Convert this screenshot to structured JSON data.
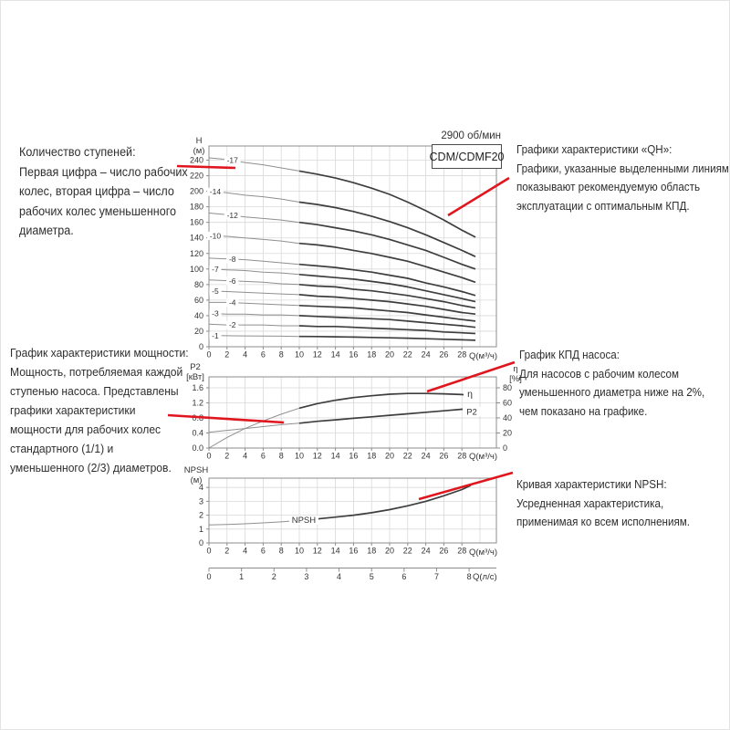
{
  "colors": {
    "accent": "#e0161f",
    "curve": "#3e3e3e",
    "curve_thin": "#8f8f8f",
    "grid": "#d9d9d9",
    "border": "#8c8c8c",
    "text": "#333333"
  },
  "annotations": [
    {
      "id": "stages",
      "text": "Количество ступеней:\nПервая цифра – число рабочих\nколес, вторая цифра – число\nрабочих колес уменьшенного\nдиаметра."
    },
    {
      "id": "qh",
      "text": "Графики характеристики «QH»:\nГрафики, указанные выделенными линиями,\nпоказывают рекомендуемую область\nэксплуатации с оптимальным КПД."
    },
    {
      "id": "power",
      "text": "График характеристики мощности:\nМощность, потребляемая каждой\nступенью насоса. Представлены\nграфики характеристики\nмощности для рабочих колес\nстандартного (1/1) и\nуменьшенного (2/3) диаметров."
    },
    {
      "id": "efficiency",
      "text": "График КПД насоса:\nДля насосов с рабочим колесом\nуменьшенного диаметра ниже на 2%,\nчем показано на графике."
    },
    {
      "id": "npsh",
      "text": "Кривая характеристики NPSH:\nУсредненная характеристика,\nприменимая ко всем исполнениям."
    }
  ],
  "lps_axis": {
    "label": "Q(л/с)",
    "ticks": [
      0,
      1,
      2,
      3,
      4,
      5,
      6,
      7,
      8
    ],
    "m3h_per_lps": 3.6
  },
  "chart_data": [
    {
      "type": "line",
      "id": "qh",
      "title": "CDM/CDMF20",
      "speed": "2900 об/мин",
      "ylabel": "H",
      "ylabel_unit": "(м)",
      "xlabel": "Q(м³/ч)",
      "xlim": [
        0,
        31.8
      ],
      "ylim": [
        0,
        258
      ],
      "grid": true,
      "x_ticks": [
        0,
        2,
        4,
        6,
        8,
        10,
        12,
        14,
        16,
        18,
        20,
        22,
        24,
        26,
        28
      ],
      "y_ticks": [
        0,
        20,
        40,
        60,
        80,
        100,
        120,
        140,
        160,
        180,
        200,
        220,
        240
      ],
      "emphasis_from_q": 10,
      "x": [
        0,
        2,
        4,
        6,
        8,
        10,
        12,
        14,
        16,
        18,
        20,
        22,
        24,
        26,
        28,
        29.5
      ],
      "series": [
        {
          "name": "-17",
          "label_q": 2.6,
          "values": [
            243,
            241,
            237,
            234,
            230,
            226,
            222,
            217,
            211,
            204,
            196,
            186,
            175,
            163,
            150,
            141
          ]
        },
        {
          "name": "-14",
          "label_q": 0.7,
          "values": [
            200,
            198,
            195,
            193,
            190,
            186,
            183,
            179,
            174,
            168,
            161,
            153,
            144,
            134,
            124,
            116
          ]
        },
        {
          "name": "-12",
          "label_q": 2.6,
          "values": [
            172,
            170,
            167,
            165,
            163,
            160,
            157,
            153,
            149,
            144,
            138,
            131,
            124,
            115,
            106,
            100
          ]
        },
        {
          "name": "-10",
          "label_q": 0.7,
          "values": [
            143,
            142,
            140,
            138,
            136,
            133,
            131,
            128,
            124,
            120,
            115,
            110,
            103,
            96,
            89,
            83
          ]
        },
        {
          "name": "-8",
          "label_q": 2.6,
          "values": [
            114,
            113,
            112,
            110,
            108,
            106,
            104,
            102,
            99,
            96,
            92,
            88,
            82,
            77,
            71,
            66
          ]
        },
        {
          "name": "-7",
          "label_q": 0.7,
          "values": [
            100,
            99,
            98,
            96,
            95,
            93,
            91,
            89,
            87,
            84,
            81,
            77,
            72,
            67,
            62,
            58
          ]
        },
        {
          "name": "-6",
          "label_q": 2.6,
          "values": [
            86,
            85,
            84,
            83,
            81,
            80,
            78,
            77,
            74,
            72,
            69,
            66,
            62,
            58,
            53,
            50
          ]
        },
        {
          "name": "-5",
          "label_q": 0.7,
          "values": [
            72,
            71,
            70,
            69,
            68,
            67,
            65,
            64,
            62,
            60,
            58,
            55,
            52,
            48,
            44,
            42
          ]
        },
        {
          "name": "-4",
          "label_q": 2.6,
          "values": [
            57,
            57,
            56,
            55,
            54,
            53,
            52,
            51,
            50,
            48,
            46,
            44,
            41,
            38,
            35,
            33
          ]
        },
        {
          "name": "-3",
          "label_q": 0.7,
          "values": [
            43,
            42,
            42,
            41,
            41,
            40,
            39,
            38,
            37,
            36,
            35,
            33,
            31,
            29,
            27,
            25
          ]
        },
        {
          "name": "-2",
          "label_q": 2.6,
          "values": [
            29,
            28,
            28,
            28,
            27,
            27,
            26,
            26,
            25,
            24,
            23,
            22,
            21,
            19,
            18,
            17
          ]
        },
        {
          "name": "-1",
          "label_q": 0.7,
          "values": [
            14.3,
            14.2,
            14,
            13.8,
            13.6,
            13.3,
            13.1,
            12.8,
            12.4,
            12,
            11.5,
            11,
            10.3,
            9.6,
            8.9,
            8.3
          ]
        }
      ]
    },
    {
      "type": "line",
      "id": "p2-eta",
      "ylabel_left": "P2",
      "ylabel_left_unit": "[кВт]",
      "ylabel_right": "η",
      "ylabel_right_unit": "[%]",
      "xlabel": "Q(м³/ч)",
      "x_ticks": [
        0,
        2,
        4,
        6,
        8,
        10,
        12,
        14,
        16,
        18,
        20,
        22,
        24,
        26,
        28
      ],
      "y_ticks_left": [
        "0.0",
        "0.4",
        "0.8",
        "1.2",
        "1.6"
      ],
      "y_ticks_right": [
        0,
        20,
        40,
        60,
        80
      ],
      "emphasis_from_q": 10,
      "x": [
        0,
        2,
        4,
        6,
        8,
        10,
        12,
        14,
        16,
        18,
        20,
        22,
        24,
        26,
        28,
        29
      ],
      "series": [
        {
          "name": "η",
          "axis": "right",
          "values": [
            0,
            14,
            26,
            36,
            45,
            53,
            59,
            63.5,
            67,
            69.5,
            71.5,
            72.5,
            72.5,
            72,
            71,
            70
          ]
        },
        {
          "name": "P2",
          "axis": "left",
          "values": [
            0.42,
            0.47,
            0.52,
            0.57,
            0.62,
            0.66,
            0.71,
            0.75,
            0.79,
            0.83,
            0.87,
            0.91,
            0.95,
            0.99,
            1.03,
            1.05
          ]
        }
      ]
    },
    {
      "type": "line",
      "id": "npsh",
      "ylabel": "NPSH",
      "ylabel_unit": "(м)",
      "xlabel": "Q(м³/ч)",
      "x_ticks": [
        0,
        2,
        4,
        6,
        8,
        10,
        12,
        14,
        16,
        18,
        20,
        22,
        24,
        26,
        28
      ],
      "y_ticks": [
        0,
        1,
        2,
        3,
        4
      ],
      "emphasis_from_q": 12,
      "x": [
        0,
        2,
        4,
        6,
        8,
        10,
        12,
        14,
        16,
        18,
        20,
        22,
        24,
        26,
        28,
        29
      ],
      "series": [
        {
          "name": "NPSH",
          "label_q": 10.5,
          "values": [
            1.3,
            1.33,
            1.38,
            1.45,
            1.52,
            1.62,
            1.73,
            1.86,
            2.0,
            2.18,
            2.4,
            2.68,
            3.0,
            3.4,
            3.85,
            4.15
          ]
        }
      ]
    }
  ]
}
